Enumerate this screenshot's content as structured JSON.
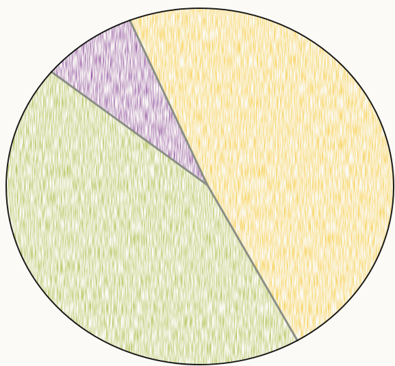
{
  "chart_data": {
    "type": "pie",
    "slices": [
      {
        "value": 0.475,
        "color": "#f7c21a"
      },
      {
        "value": 0.445,
        "color": "#9eb22a"
      },
      {
        "value": 0.08,
        "color": "#7b2f8e"
      }
    ],
    "legend": "none"
  }
}
